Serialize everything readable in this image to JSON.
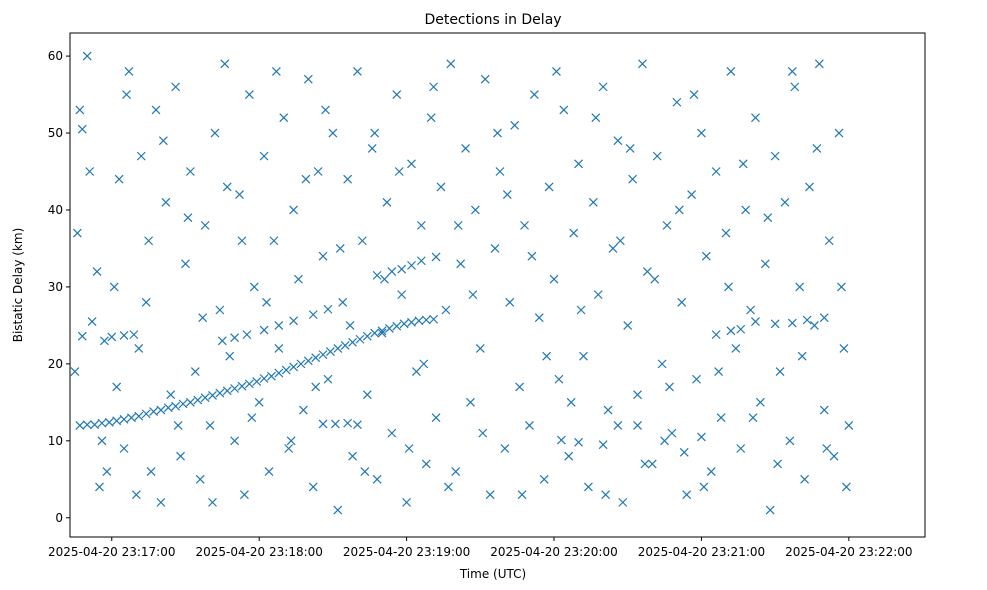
{
  "chart_data": {
    "type": "scatter",
    "title": "Detections in Delay",
    "xlabel": "Time (UTC)",
    "ylabel": "Bistatic Delay (km)",
    "xlim_seconds": [
      -17,
      331
    ],
    "ylim": [
      -2.5,
      63
    ],
    "x_start": "2025-04-20 23:17:00",
    "x_ticks": [
      {
        "t": 0,
        "label": "2025-04-20 23:17:00"
      },
      {
        "t": 60,
        "label": "2025-04-20 23:18:00"
      },
      {
        "t": 120,
        "label": "2025-04-20 23:19:00"
      },
      {
        "t": 180,
        "label": "2025-04-20 23:20:00"
      },
      {
        "t": 240,
        "label": "2025-04-20 23:21:00"
      },
      {
        "t": 300,
        "label": "2025-04-20 23:22:00"
      }
    ],
    "y_ticks": [
      0,
      10,
      20,
      30,
      40,
      50,
      60
    ],
    "marker": "x",
    "color": "#1f77b4",
    "grid": false,
    "series": [
      {
        "name": "",
        "points": [
          [
            -13,
            12
          ],
          [
            -10,
            12.1
          ],
          [
            -7,
            12.1
          ],
          [
            -4,
            12.3
          ],
          [
            -1,
            12.4
          ],
          [
            2,
            12.6
          ],
          [
            5,
            12.8
          ],
          [
            8,
            13
          ],
          [
            11,
            13.2
          ],
          [
            14,
            13.5
          ],
          [
            17,
            13.8
          ],
          [
            20,
            14
          ],
          [
            23,
            14.3
          ],
          [
            26,
            14.5
          ],
          [
            29,
            14.8
          ],
          [
            32,
            15
          ],
          [
            35,
            15.3
          ],
          [
            38,
            15.6
          ],
          [
            41,
            15.9
          ],
          [
            44,
            16.2
          ],
          [
            47,
            16.5
          ],
          [
            50,
            16.8
          ],
          [
            53,
            17.1
          ],
          [
            56,
            17.4
          ],
          [
            59,
            17.7
          ],
          [
            62,
            18.1
          ],
          [
            65,
            18.4
          ],
          [
            68,
            18.8
          ],
          [
            71,
            19.2
          ],
          [
            74,
            19.6
          ],
          [
            77,
            20
          ],
          [
            80,
            20.4
          ],
          [
            83,
            20.8
          ],
          [
            86,
            21.2
          ],
          [
            89,
            21.6
          ],
          [
            92,
            22
          ],
          [
            95,
            22.4
          ],
          [
            98,
            22.8
          ],
          [
            101,
            23.2
          ],
          [
            104,
            23.6
          ],
          [
            107,
            24
          ],
          [
            110,
            24.3
          ],
          [
            113,
            24.6
          ],
          [
            116,
            24.9
          ],
          [
            119,
            25.2
          ],
          [
            122,
            25.4
          ],
          [
            125,
            25.6
          ],
          [
            128,
            25.7
          ],
          [
            131,
            25.8
          ],
          [
            -12,
            23.6
          ],
          [
            0,
            23.5
          ],
          [
            5,
            23.7
          ],
          [
            9,
            23.8
          ],
          [
            45,
            23
          ],
          [
            50,
            23.4
          ],
          [
            55,
            23.8
          ],
          [
            62,
            24.4
          ],
          [
            68,
            25.0
          ],
          [
            74,
            25.6
          ],
          [
            82,
            26.4
          ],
          [
            88,
            27.1
          ],
          [
            108,
            31.5
          ],
          [
            114,
            32
          ],
          [
            118,
            32.3
          ],
          [
            122,
            32.8
          ],
          [
            126,
            33.4
          ],
          [
            132,
            33.9
          ],
          [
            86,
            12.2
          ],
          [
            91,
            12.2
          ],
          [
            96,
            12.3
          ],
          [
            100,
            12.1
          ],
          [
            183,
            10.1
          ],
          [
            190,
            9.8
          ],
          [
            200,
            9.5
          ],
          [
            206,
            12
          ],
          [
            214,
            12
          ],
          [
            225,
            10
          ],
          [
            233,
            8.5
          ],
          [
            240,
            10.5
          ],
          [
            246,
            23.8
          ],
          [
            252,
            24.3
          ],
          [
            256,
            24.5
          ],
          [
            262,
            25.5
          ],
          [
            270,
            25.2
          ],
          [
            277,
            25.3
          ],
          [
            283,
            25.7
          ],
          [
            290,
            26
          ],
          [
            -15,
            19
          ],
          [
            -13,
            53
          ],
          [
            -12,
            50.5
          ],
          [
            -10,
            60
          ],
          [
            -8,
            25.5
          ],
          [
            -6,
            32
          ],
          [
            -5,
            4
          ],
          [
            -3,
            23
          ],
          [
            -2,
            6
          ],
          [
            2,
            17
          ],
          [
            3,
            44
          ],
          [
            5,
            9
          ],
          [
            7,
            58
          ],
          [
            10,
            3
          ],
          [
            12,
            47
          ],
          [
            14,
            28
          ],
          [
            15,
            36
          ],
          [
            18,
            53
          ],
          [
            20,
            2
          ],
          [
            22,
            41
          ],
          [
            24,
            16
          ],
          [
            26,
            56
          ],
          [
            28,
            8
          ],
          [
            30,
            33
          ],
          [
            32,
            45
          ],
          [
            34,
            19
          ],
          [
            36,
            5
          ],
          [
            38,
            38
          ],
          [
            40,
            12
          ],
          [
            42,
            50
          ],
          [
            44,
            27
          ],
          [
            46,
            59
          ],
          [
            48,
            21
          ],
          [
            50,
            10
          ],
          [
            52,
            42
          ],
          [
            54,
            3
          ],
          [
            56,
            55
          ],
          [
            58,
            30
          ],
          [
            60,
            15
          ],
          [
            62,
            47
          ],
          [
            64,
            6
          ],
          [
            66,
            36
          ],
          [
            68,
            22
          ],
          [
            70,
            52
          ],
          [
            72,
            9
          ],
          [
            74,
            40
          ],
          [
            76,
            31
          ],
          [
            78,
            14
          ],
          [
            80,
            57
          ],
          [
            82,
            4
          ],
          [
            84,
            45
          ],
          [
            86,
            34
          ],
          [
            88,
            18
          ],
          [
            90,
            50
          ],
          [
            92,
            1
          ],
          [
            94,
            28
          ],
          [
            96,
            44
          ],
          [
            98,
            8
          ],
          [
            100,
            58
          ],
          [
            102,
            36
          ],
          [
            104,
            16
          ],
          [
            106,
            48
          ],
          [
            108,
            5
          ],
          [
            110,
            24
          ],
          [
            112,
            41
          ],
          [
            114,
            11
          ],
          [
            116,
            55
          ],
          [
            118,
            29
          ],
          [
            120,
            2
          ],
          [
            122,
            46
          ],
          [
            124,
            19
          ],
          [
            126,
            38
          ],
          [
            128,
            7
          ],
          [
            130,
            52
          ],
          [
            132,
            13
          ],
          [
            134,
            43
          ],
          [
            136,
            27
          ],
          [
            138,
            59
          ],
          [
            140,
            6
          ],
          [
            142,
            33
          ],
          [
            144,
            48
          ],
          [
            146,
            15
          ],
          [
            148,
            40
          ],
          [
            150,
            22
          ],
          [
            152,
            57
          ],
          [
            154,
            3
          ],
          [
            156,
            35
          ],
          [
            158,
            45
          ],
          [
            160,
            9
          ],
          [
            162,
            28
          ],
          [
            164,
            51
          ],
          [
            166,
            17
          ],
          [
            168,
            38
          ],
          [
            170,
            12
          ],
          [
            172,
            55
          ],
          [
            174,
            26
          ],
          [
            176,
            5
          ],
          [
            178,
            43
          ],
          [
            180,
            31
          ],
          [
            182,
            18
          ],
          [
            184,
            53
          ],
          [
            186,
            8
          ],
          [
            188,
            37
          ],
          [
            190,
            46
          ],
          [
            192,
            21
          ],
          [
            194,
            4
          ],
          [
            196,
            41
          ],
          [
            198,
            29
          ],
          [
            200,
            56
          ],
          [
            202,
            14
          ],
          [
            204,
            35
          ],
          [
            206,
            49
          ],
          [
            208,
            2
          ],
          [
            210,
            25
          ],
          [
            212,
            44
          ],
          [
            214,
            16
          ],
          [
            216,
            59
          ],
          [
            218,
            32
          ],
          [
            220,
            7
          ],
          [
            222,
            47
          ],
          [
            224,
            20
          ],
          [
            226,
            38
          ],
          [
            228,
            11
          ],
          [
            230,
            54
          ],
          [
            232,
            28
          ],
          [
            234,
            3
          ],
          [
            236,
            42
          ],
          [
            238,
            18
          ],
          [
            240,
            50
          ],
          [
            242,
            34
          ],
          [
            244,
            6
          ],
          [
            246,
            45
          ],
          [
            248,
            13
          ],
          [
            250,
            37
          ],
          [
            252,
            58
          ],
          [
            254,
            22
          ],
          [
            256,
            9
          ],
          [
            258,
            40
          ],
          [
            260,
            27
          ],
          [
            262,
            52
          ],
          [
            264,
            15
          ],
          [
            266,
            33
          ],
          [
            268,
            1
          ],
          [
            270,
            47
          ],
          [
            272,
            19
          ],
          [
            274,
            41
          ],
          [
            276,
            10
          ],
          [
            278,
            56
          ],
          [
            280,
            30
          ],
          [
            282,
            5
          ],
          [
            284,
            43
          ],
          [
            286,
            25
          ],
          [
            288,
            59
          ],
          [
            290,
            14
          ],
          [
            292,
            36
          ],
          [
            294,
            8
          ],
          [
            296,
            50
          ],
          [
            298,
            22
          ],
          [
            300,
            12
          ],
          [
            -14,
            37
          ],
          [
            -9,
            45
          ],
          [
            -4,
            10
          ],
          [
            1,
            30
          ],
          [
            6,
            55
          ],
          [
            11,
            22
          ],
          [
            16,
            6
          ],
          [
            21,
            49
          ],
          [
            27,
            12
          ],
          [
            31,
            39
          ],
          [
            37,
            26
          ],
          [
            41,
            2
          ],
          [
            47,
            43
          ],
          [
            53,
            36
          ],
          [
            57,
            13
          ],
          [
            63,
            28
          ],
          [
            67,
            58
          ],
          [
            73,
            10
          ],
          [
            79,
            44
          ],
          [
            83,
            17
          ],
          [
            87,
            53
          ],
          [
            93,
            35
          ],
          [
            97,
            25
          ],
          [
            103,
            6
          ],
          [
            107,
            50
          ],
          [
            111,
            31
          ],
          [
            117,
            45
          ],
          [
            121,
            9
          ],
          [
            127,
            20
          ],
          [
            131,
            56
          ],
          [
            137,
            4
          ],
          [
            141,
            38
          ],
          [
            147,
            29
          ],
          [
            151,
            11
          ],
          [
            157,
            50
          ],
          [
            161,
            42
          ],
          [
            167,
            3
          ],
          [
            171,
            34
          ],
          [
            177,
            21
          ],
          [
            181,
            58
          ],
          [
            187,
            15
          ],
          [
            191,
            27
          ],
          [
            197,
            52
          ],
          [
            201,
            3
          ],
          [
            207,
            36
          ],
          [
            211,
            48
          ],
          [
            217,
            7
          ],
          [
            221,
            31
          ],
          [
            227,
            17
          ],
          [
            231,
            40
          ],
          [
            237,
            55
          ],
          [
            241,
            4
          ],
          [
            247,
            19
          ],
          [
            251,
            30
          ],
          [
            257,
            46
          ],
          [
            261,
            13
          ],
          [
            267,
            39
          ],
          [
            271,
            7
          ],
          [
            277,
            58
          ],
          [
            281,
            21
          ],
          [
            287,
            48
          ],
          [
            291,
            9
          ],
          [
            297,
            30
          ],
          [
            299,
            4
          ]
        ]
      }
    ]
  }
}
